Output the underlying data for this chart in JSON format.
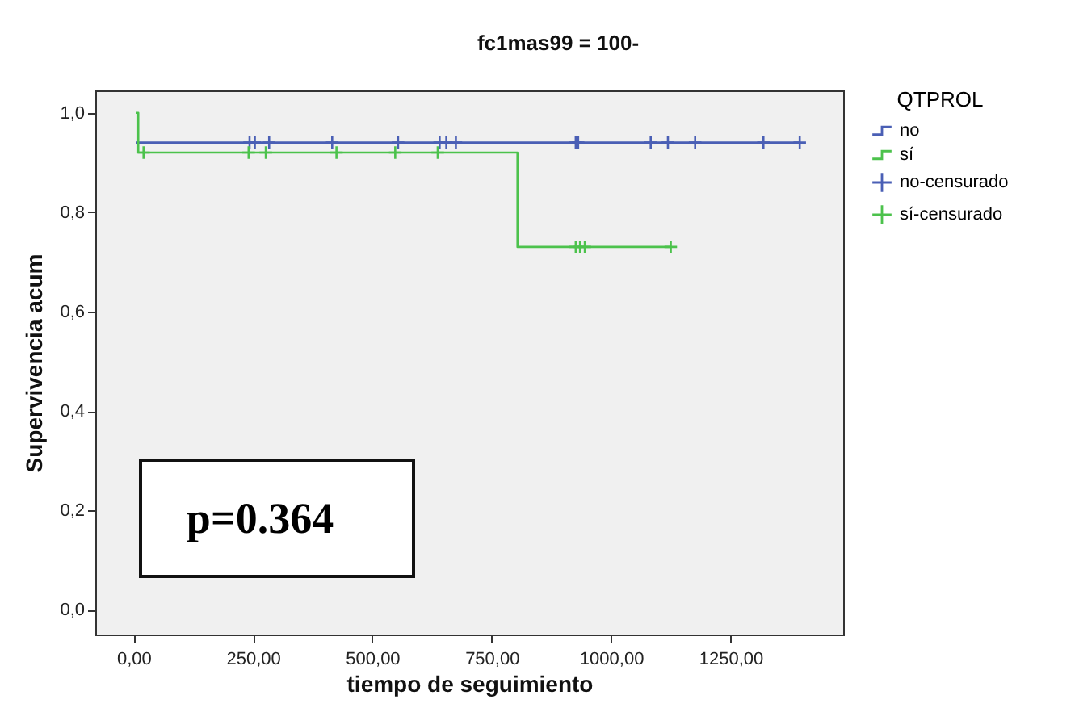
{
  "chart_data": {
    "type": "step",
    "title": "fc1mas99 = 100-",
    "xlabel": "tiempo de seguimiento",
    "ylabel": "Supervivencia acum",
    "legend_title": "QTPROL",
    "legend": "top right",
    "annotations": [
      "p=0.364"
    ],
    "xlim": [
      -80,
      1486
    ],
    "ylim": [
      -0.05,
      1.045
    ],
    "xticks": [
      {
        "value": 0,
        "label": "0,00"
      },
      {
        "value": 250,
        "label": "250,00"
      },
      {
        "value": 500,
        "label": "500,00"
      },
      {
        "value": 750,
        "label": "750,00"
      },
      {
        "value": 1000,
        "label": "1000,00"
      },
      {
        "value": 1250,
        "label": "1250,00"
      }
    ],
    "yticks": [
      {
        "value": 0,
        "label": "0,0"
      },
      {
        "value": 0.2,
        "label": "0,2"
      },
      {
        "value": 0.4,
        "label": "0,4"
      },
      {
        "value": 0.6,
        "label": "0,6"
      },
      {
        "value": 0.8,
        "label": "0,8"
      },
      {
        "value": 1,
        "label": "1,0"
      }
    ],
    "series": [
      {
        "name": "no",
        "type": "step",
        "color": "#4a5fb5",
        "x": [
          5,
          1395
        ],
        "values": [
          0.94,
          0.94
        ]
      },
      {
        "name": "sí",
        "type": "step",
        "color": "#4cc24c",
        "x": [
          5,
          10,
          804,
          1125
        ],
        "values": [
          1.0,
          0.92,
          0.73,
          0.73
        ]
      },
      {
        "name": "no-censurado",
        "type": "scatter",
        "marker": "cross",
        "color": "#4a5fb5",
        "x": [
          243,
          254,
          284,
          416,
          554,
          641,
          655,
          675,
          926,
          931,
          1083,
          1119,
          1176,
          1319,
          1395
        ],
        "values": [
          0.94,
          0.94,
          0.94,
          0.94,
          0.94,
          0.94,
          0.94,
          0.94,
          0.94,
          0.94,
          0.94,
          0.94,
          0.94,
          0.94,
          0.94
        ]
      },
      {
        "name": "sí-censurado",
        "type": "scatter",
        "marker": "cross",
        "color": "#4cc24c",
        "x": [
          21,
          241,
          277,
          425,
          548,
          637,
          926,
          935,
          945,
          1125
        ],
        "values": [
          0.92,
          0.92,
          0.92,
          0.92,
          0.92,
          0.92,
          0.73,
          0.73,
          0.73,
          0.73
        ]
      }
    ]
  }
}
